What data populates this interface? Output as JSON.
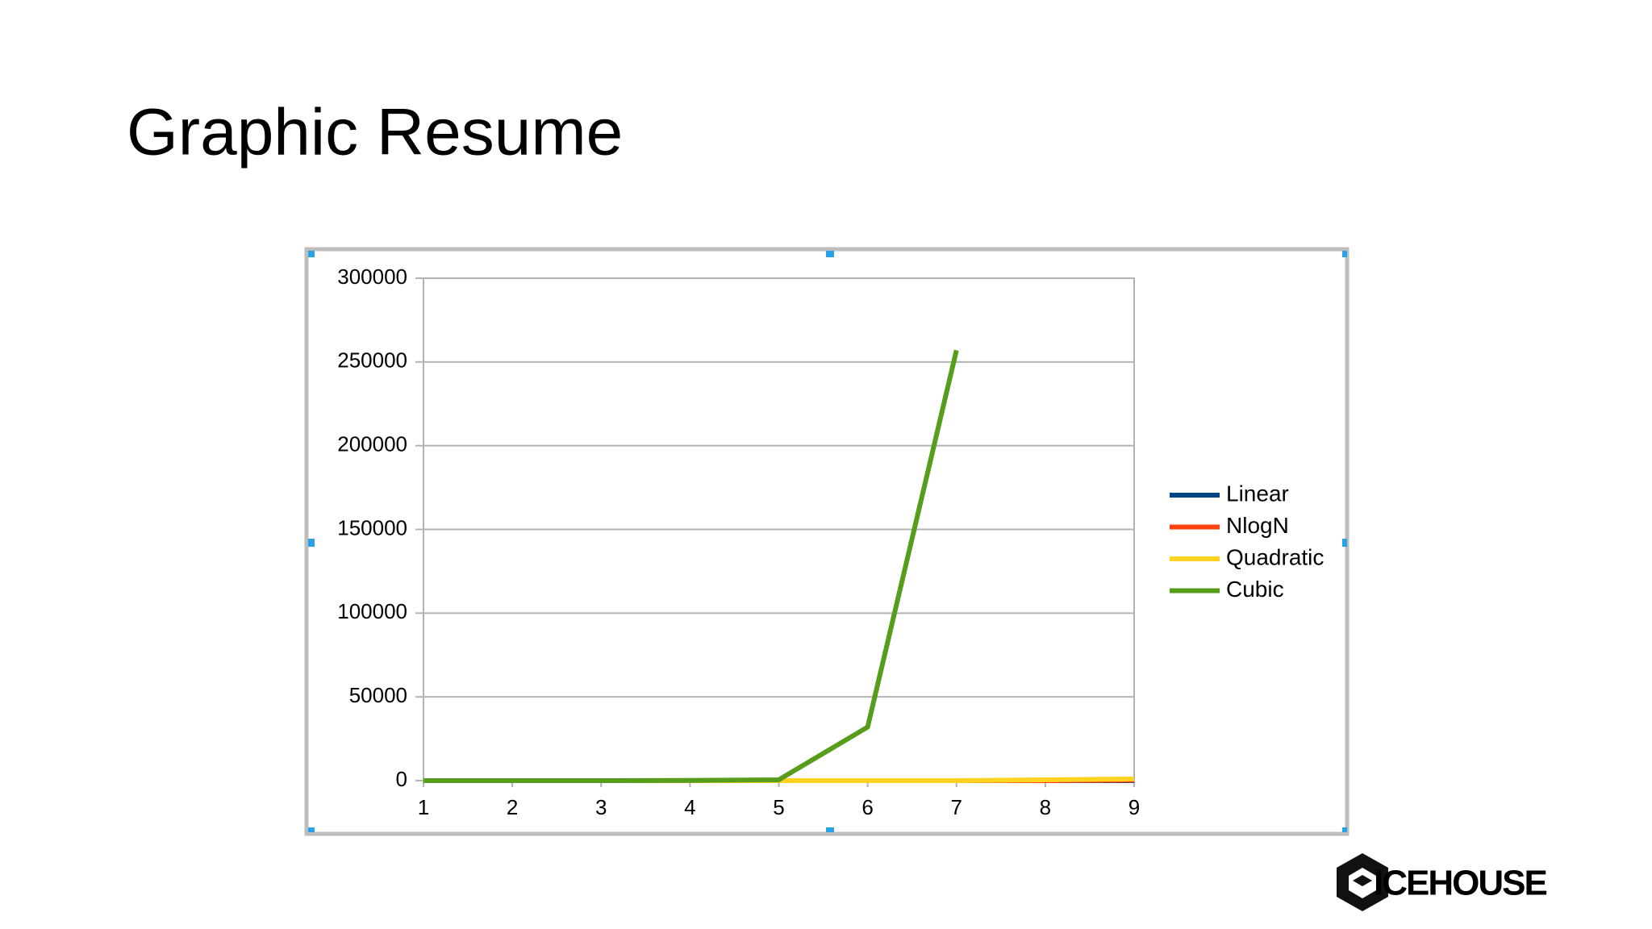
{
  "slide": {
    "title": "Graphic Resume",
    "logo": "ICEHOUSE"
  },
  "chart_data": {
    "type": "line",
    "x": [
      1,
      2,
      3,
      4,
      5,
      6,
      7,
      8,
      9
    ],
    "series": [
      {
        "name": "Linear",
        "color": "#004586",
        "values": [
          0,
          0,
          0,
          0,
          0,
          0,
          0,
          0,
          0
        ]
      },
      {
        "name": "NlogN",
        "color": "#ff420e",
        "values": [
          0,
          0,
          0,
          0,
          0,
          0,
          0,
          0,
          300
        ]
      },
      {
        "name": "Quadratic",
        "color": "#ffd320",
        "values": [
          0,
          0,
          0,
          0,
          0,
          0,
          0,
          500,
          1000
        ]
      },
      {
        "name": "Cubic",
        "color": "#579d1c",
        "values": [
          0,
          0,
          0,
          100,
          500,
          32000,
          257000,
          null,
          null
        ]
      }
    ],
    "xlim": [
      1,
      9
    ],
    "xticks": [
      1,
      2,
      3,
      4,
      5,
      6,
      7,
      8,
      9
    ],
    "ylim": [
      0,
      300000
    ],
    "yticks": [
      0,
      50000,
      100000,
      150000,
      200000,
      250000,
      300000
    ],
    "grid": true,
    "legend": "right"
  }
}
